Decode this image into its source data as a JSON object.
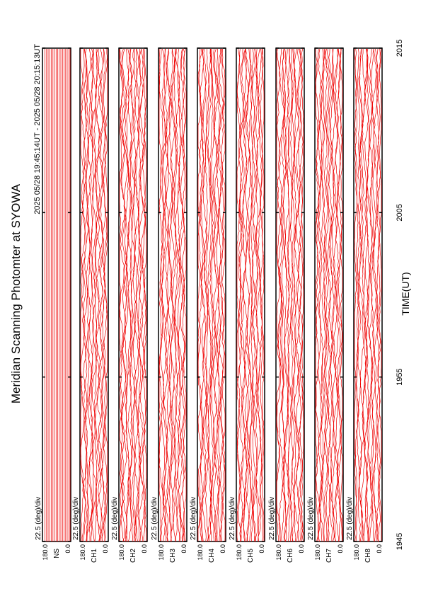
{
  "header": {
    "title": "Meridian Scanning Photomter at SYOWA",
    "subtitle": "2025 05/28 19:45:14UT - 2025 05/28 20:15:13UT"
  },
  "axis": {
    "xlabel": "TIME(UT)",
    "xticks": [
      "1945",
      "1955",
      "2005",
      "2015"
    ]
  },
  "panels": [
    {
      "scale": "22.5 (deg)/div",
      "top": "180.0",
      "bottom": "0.0",
      "channel": "NS"
    },
    {
      "scale": "22.5 (deg)/div",
      "top": "180.0",
      "bottom": "0.0",
      "channel": "CH1"
    },
    {
      "scale": "22.5 (deg)/div",
      "top": "180.0",
      "bottom": "0.0",
      "channel": "CH2"
    },
    {
      "scale": "22.5 (deg)/div",
      "top": "180.0",
      "bottom": "0.0",
      "channel": "CH3"
    },
    {
      "scale": "22.5 (deg)/div",
      "top": "180.0",
      "bottom": "0.0",
      "channel": "CH4"
    },
    {
      "scale": "22.5 (deg)/div",
      "top": "180.0",
      "bottom": "0.0",
      "channel": "CH5"
    },
    {
      "scale": "22.5 (deg)/div",
      "top": "180.0",
      "bottom": "0.0",
      "channel": "CH6"
    },
    {
      "scale": "22.5 (deg)/div",
      "top": "180.0",
      "bottom": "0.0",
      "channel": "CH7"
    },
    {
      "scale": "22.5 (deg)/div",
      "top": "180.0",
      "bottom": "0.0",
      "channel": "CH8"
    }
  ]
}
